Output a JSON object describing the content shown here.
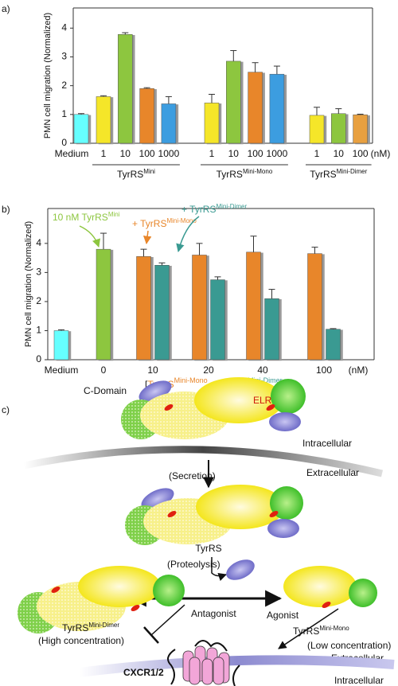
{
  "panels": [
    "a)",
    "b)",
    "c)"
  ],
  "chart_data": [
    {
      "type": "bar",
      "ylabel": "PMN cell migration (Normalized)",
      "ylim": [
        0,
        4.7
      ],
      "yticks": [
        0,
        1,
        2,
        3,
        4
      ],
      "unit": "(nM)",
      "control": {
        "category": "Medium",
        "value": 1.0,
        "error": 0.03,
        "color": "#66ffff"
      },
      "groups": [
        {
          "name": "TyrRS",
          "sup": "Mini",
          "categories": [
            "1",
            "10",
            "100",
            "1000"
          ],
          "values": [
            1.62,
            3.78,
            1.9,
            1.37
          ],
          "errors": [
            0.03,
            0.06,
            0.03,
            0.25
          ],
          "colors": [
            "#f5e629",
            "#8dc63f",
            "#e8862a",
            "#3c9de0"
          ]
        },
        {
          "name": "TyrRS",
          "sup": "Mini-Mono",
          "categories": [
            "1",
            "10",
            "100",
            "1000"
          ],
          "values": [
            1.4,
            2.85,
            2.47,
            2.4
          ],
          "errors": [
            0.3,
            0.37,
            0.33,
            0.28
          ],
          "colors": [
            "#f5e629",
            "#8dc63f",
            "#e8862a",
            "#3c9de0"
          ]
        },
        {
          "name": "TyrRS",
          "sup": "Mini-Dimer",
          "categories": [
            "1",
            "10",
            "100"
          ],
          "values": [
            0.97,
            1.03,
            0.99
          ],
          "errors": [
            0.28,
            0.17,
            0.02
          ],
          "colors": [
            "#f5e629",
            "#8dc63f",
            "#e8a040"
          ]
        }
      ]
    },
    {
      "type": "bar",
      "ylabel": "PMN cell migration (Normalized)",
      "ylim": [
        0,
        5.2
      ],
      "yticks": [
        0,
        1,
        2,
        3,
        4
      ],
      "unit": "(nM)",
      "xlabel": [
        "[",
        "TyrRS",
        "Mini-Mono",
        " or ",
        "TyrRS",
        "Mini-Dimer",
        "]"
      ],
      "categories": [
        "Medium",
        "0",
        "10",
        "20",
        "40",
        "100"
      ],
      "series": [
        {
          "color": "#66ffff",
          "values": [
            1.0,
            null,
            null,
            null,
            null,
            null
          ],
          "errors": [
            0.03,
            null,
            null,
            null,
            null,
            null
          ]
        },
        {
          "name": "10 nM TyrRS",
          "sup": "Mini",
          "color": "#8dc63f",
          "values": [
            null,
            3.8,
            null,
            null,
            null,
            null
          ],
          "errors": [
            null,
            0.55,
            null,
            null,
            null,
            null
          ]
        },
        {
          "name": "+ TyrRS",
          "sup": "Mini-Mono",
          "color": "#e8862a",
          "values": [
            null,
            null,
            3.55,
            3.6,
            3.7,
            3.65
          ],
          "errors": [
            null,
            null,
            0.25,
            0.4,
            0.55,
            0.22
          ]
        },
        {
          "name": "+ TyrRS",
          "sup": "Mini-Dimer",
          "color": "#3a9a92",
          "values": [
            null,
            null,
            3.25,
            2.75,
            2.1,
            1.05
          ],
          "errors": [
            null,
            null,
            0.08,
            0.1,
            0.32,
            0.02
          ]
        }
      ]
    }
  ],
  "diagram": {
    "c_domain": "C-Domain",
    "elr": "ELR",
    "intracellular_top": "Intracellular",
    "extracellular_top": "Extracellular",
    "secretion": "(Secretion)",
    "tyrrs": "TyrRS",
    "proteolysis": "(Proteolysis)",
    "antagonist": "Antagonist",
    "agonist": "Agonist",
    "dimer": {
      "text": "TyrRS",
      "sup": "Mini-Dimer"
    },
    "high": "(High concentration)",
    "mono": {
      "text": "TyrRS",
      "sup": "Mini-Mono"
    },
    "low": "(Low concentration)",
    "extracellular_bottom": "Extracellular",
    "intracellular_bottom": "Intracellular",
    "receptor": "CXCR1/2"
  }
}
